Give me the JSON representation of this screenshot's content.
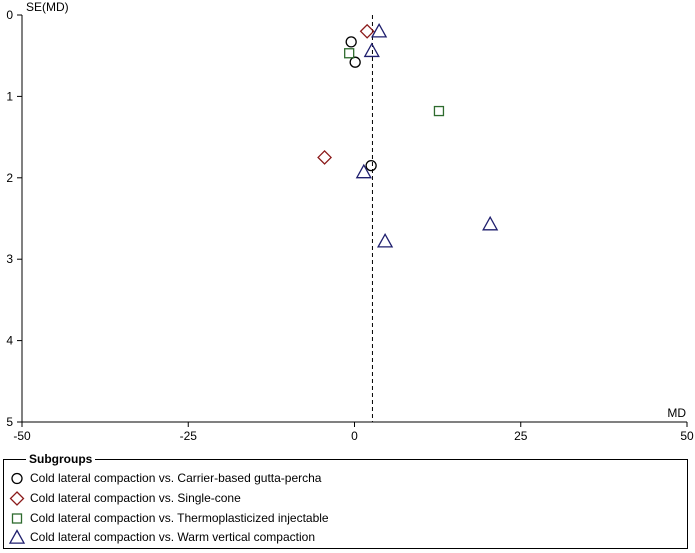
{
  "chart_data": {
    "type": "scatter",
    "subtype": "funnel",
    "xlabel": "MD",
    "ylabel": "SE(MD)",
    "xlim": [
      -50,
      50
    ],
    "ylim": [
      0,
      5
    ],
    "y_inverted": true,
    "xticks": [
      "-50",
      "-25",
      "0",
      "25",
      "50"
    ],
    "yticks": [
      "0",
      "1",
      "2",
      "3",
      "4",
      "5"
    ],
    "reference_line_x": 2.7,
    "legend_title": "Subgroups",
    "series": [
      {
        "name": "Cold lateral compaction vs. Carrier-based gutta-percha",
        "marker": "circle",
        "color": "#000000",
        "points": [
          {
            "x": -0.5,
            "y": 0.33
          },
          {
            "x": 0.1,
            "y": 0.58
          },
          {
            "x": 2.5,
            "y": 1.85
          }
        ]
      },
      {
        "name": "Cold lateral compaction vs. Single-cone",
        "marker": "diamond",
        "color": "#8b1a1a",
        "points": [
          {
            "x": 1.9,
            "y": 0.2
          },
          {
            "x": -4.5,
            "y": 1.75
          }
        ]
      },
      {
        "name": "Cold lateral compaction vs. Thermoplasticized injectable",
        "marker": "square",
        "color": "#2e6b2e",
        "points": [
          {
            "x": -0.8,
            "y": 0.47
          },
          {
            "x": 12.7,
            "y": 1.18
          }
        ]
      },
      {
        "name": "Cold lateral compaction vs. Warm vertical compaction",
        "marker": "triangle",
        "color": "#1f1f6e",
        "points": [
          {
            "x": 3.7,
            "y": 0.2
          },
          {
            "x": 2.6,
            "y": 0.44
          },
          {
            "x": 1.4,
            "y": 1.93
          },
          {
            "x": 20.4,
            "y": 2.57
          },
          {
            "x": 4.6,
            "y": 2.78
          }
        ]
      }
    ]
  }
}
